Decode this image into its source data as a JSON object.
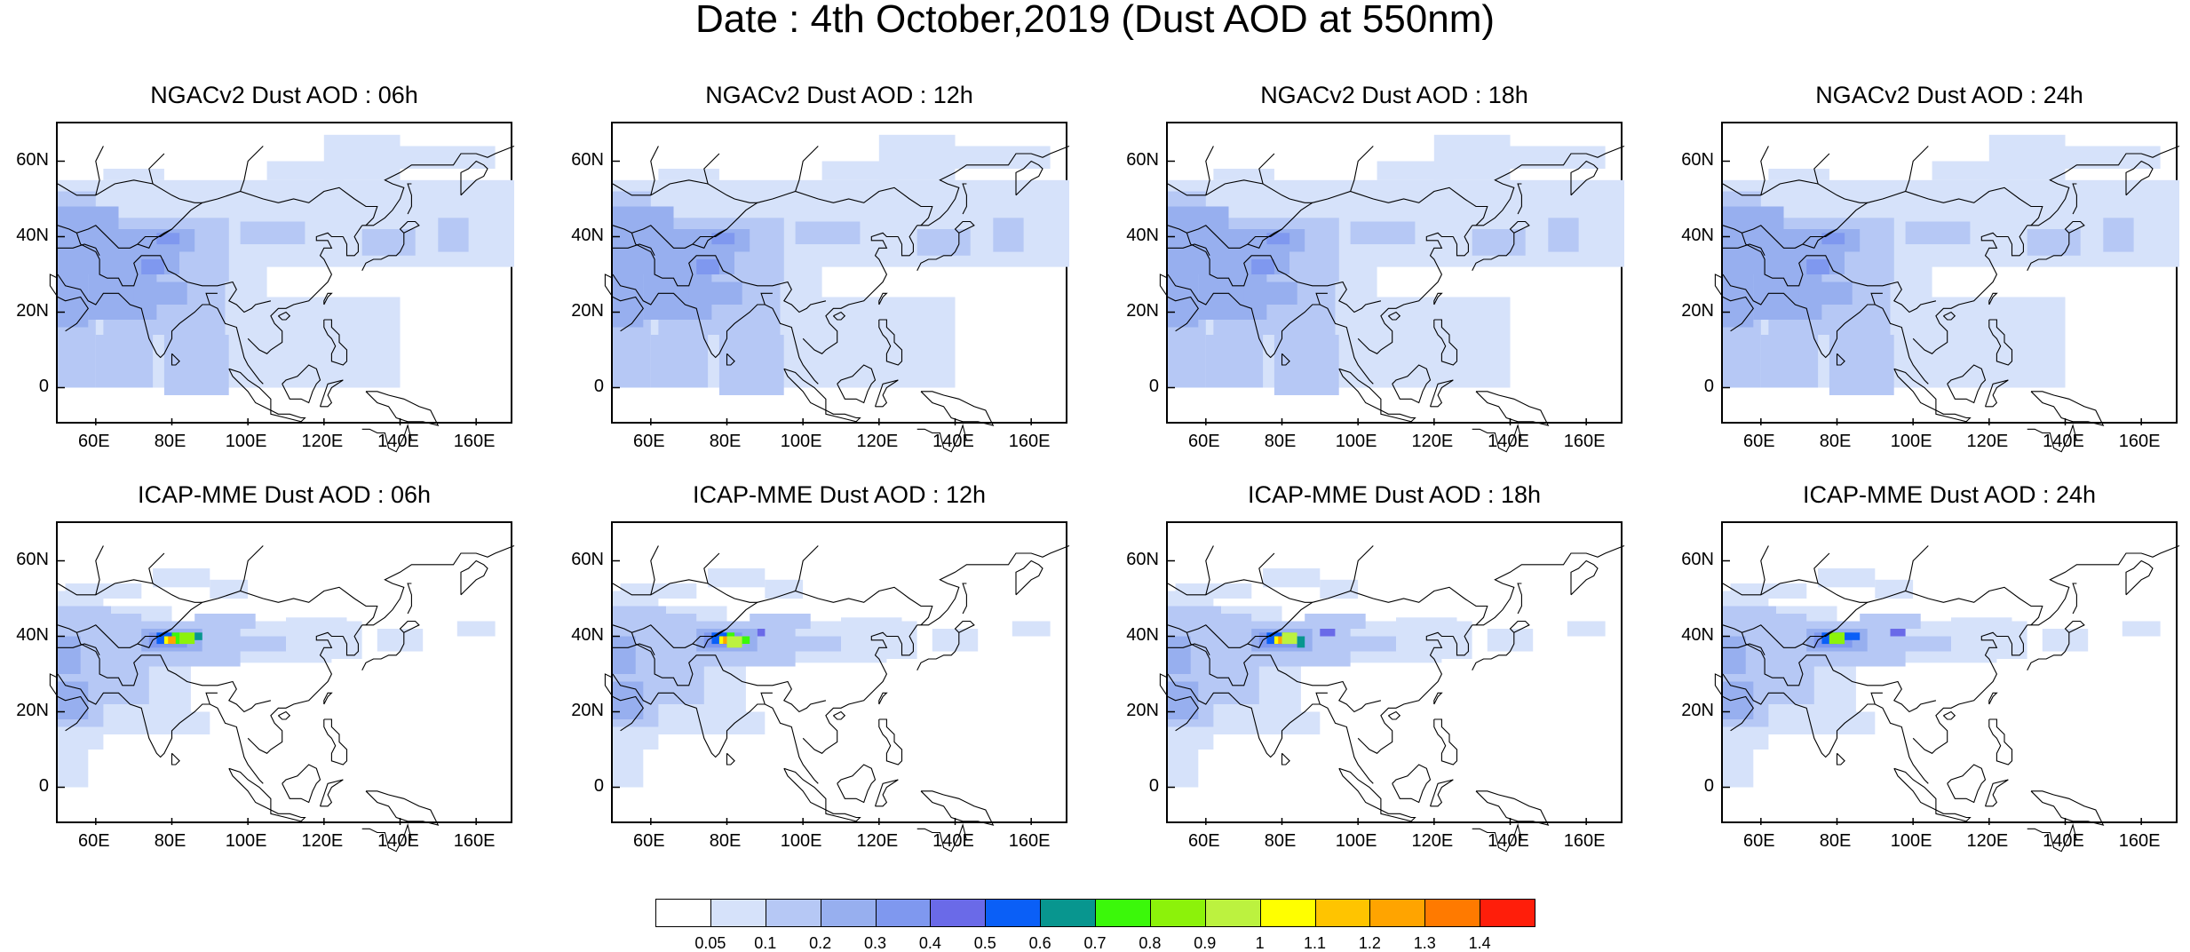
{
  "title": "Date : 4th October,2019 (Dust AOD at 550nm)",
  "panels": [
    {
      "title": "NGACv2 Dust AOD : 06h",
      "model": "ngac"
    },
    {
      "title": "NGACv2 Dust AOD : 12h",
      "model": "ngac"
    },
    {
      "title": "NGACv2 Dust AOD : 18h",
      "model": "ngac"
    },
    {
      "title": "NGACv2 Dust AOD : 24h",
      "model": "ngac"
    },
    {
      "title": "ICAP-MME Dust AOD : 06h",
      "model": "icap"
    },
    {
      "title": "ICAP-MME Dust AOD : 12h",
      "model": "icap"
    },
    {
      "title": "ICAP-MME Dust AOD : 18h",
      "model": "icap"
    },
    {
      "title": "ICAP-MME Dust AOD : 24h",
      "model": "icap"
    }
  ],
  "axes": {
    "x_ticks": [
      "60E",
      "80E",
      "100E",
      "120E",
      "140E",
      "160E"
    ],
    "y_ticks": [
      "60N",
      "40N",
      "20N",
      "0"
    ],
    "lon_range": [
      50,
      170
    ],
    "lat_range": [
      -10,
      70
    ]
  },
  "colorbar": {
    "labels": [
      "0.05",
      "0.1",
      "0.2",
      "0.3",
      "0.4",
      "0.5",
      "0.6",
      "0.7",
      "0.8",
      "0.9",
      "1",
      "1.1",
      "1.2",
      "1.3",
      "1.4"
    ],
    "colors": [
      "#ffffff",
      "#d6e2fa",
      "#b6c8f5",
      "#97afef",
      "#7f98ef",
      "#6a6ae8",
      "#0a5ff7",
      "#08968f",
      "#3bf80a",
      "#8cf20a",
      "#bcf23f",
      "#ffff00",
      "#ffc400",
      "#ffa400",
      "#ff7a00",
      "#ff1e0a"
    ]
  }
}
